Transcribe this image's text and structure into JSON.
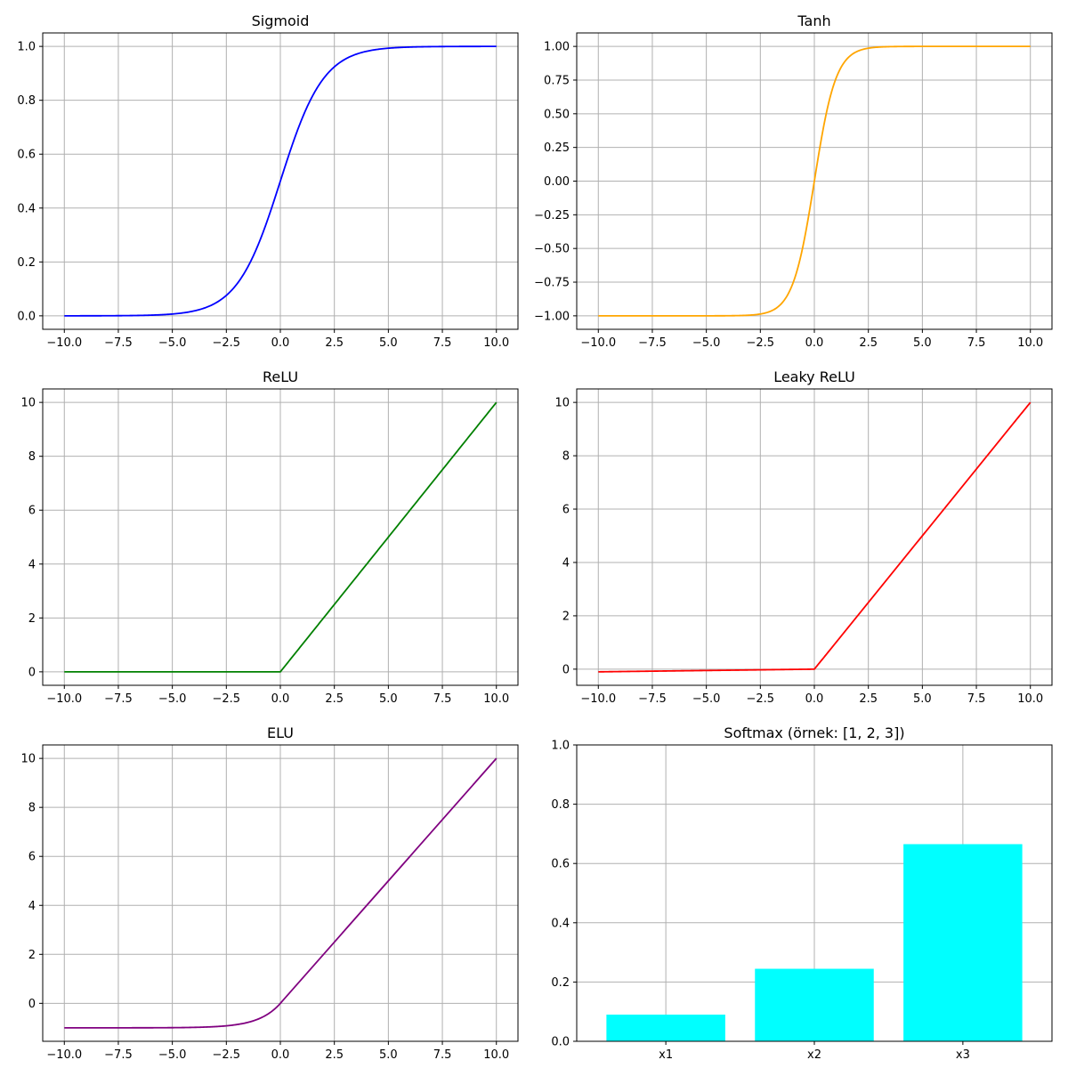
{
  "chart_data": [
    {
      "type": "line",
      "title": "Sigmoid",
      "function": "sigmoid",
      "color": "#0000ff",
      "xlim": [
        -11.0,
        11.0
      ],
      "ylim": [
        -0.05,
        1.05
      ],
      "xticks": [
        -10.0,
        -7.5,
        -5.0,
        -2.5,
        0.0,
        2.5,
        5.0,
        7.5,
        10.0
      ],
      "xtick_labels": [
        "−10.0",
        "−7.5",
        "−5.0",
        "−2.5",
        "0.0",
        "2.5",
        "5.0",
        "7.5",
        "10.0"
      ],
      "yticks": [
        0.0,
        0.2,
        0.4,
        0.6,
        0.8,
        1.0
      ],
      "ytick_labels": [
        "0.0",
        "0.2",
        "0.4",
        "0.6",
        "0.8",
        "1.0"
      ],
      "x_range": [
        -10,
        10
      ],
      "grid": true
    },
    {
      "type": "line",
      "title": "Tanh",
      "function": "tanh",
      "color": "#ffa500",
      "xlim": [
        -11.0,
        11.0
      ],
      "ylim": [
        -1.1,
        1.1
      ],
      "xticks": [
        -10.0,
        -7.5,
        -5.0,
        -2.5,
        0.0,
        2.5,
        5.0,
        7.5,
        10.0
      ],
      "xtick_labels": [
        "−10.0",
        "−7.5",
        "−5.0",
        "−2.5",
        "0.0",
        "2.5",
        "5.0",
        "7.5",
        "10.0"
      ],
      "yticks": [
        -1.0,
        -0.75,
        -0.5,
        -0.25,
        0.0,
        0.25,
        0.5,
        0.75,
        1.0
      ],
      "ytick_labels": [
        "−1.00",
        "−0.75",
        "−0.50",
        "−0.25",
        "0.00",
        "0.25",
        "0.50",
        "0.75",
        "1.00"
      ],
      "x_range": [
        -10,
        10
      ],
      "grid": true
    },
    {
      "type": "line",
      "title": "ReLU",
      "function": "relu",
      "color": "#008000",
      "xlim": [
        -11.0,
        11.0
      ],
      "ylim": [
        -0.5,
        10.5
      ],
      "xticks": [
        -10.0,
        -7.5,
        -5.0,
        -2.5,
        0.0,
        2.5,
        5.0,
        7.5,
        10.0
      ],
      "xtick_labels": [
        "−10.0",
        "−7.5",
        "−5.0",
        "−2.5",
        "0.0",
        "2.5",
        "5.0",
        "7.5",
        "10.0"
      ],
      "yticks": [
        0,
        2,
        4,
        6,
        8,
        10
      ],
      "ytick_labels": [
        "0",
        "2",
        "4",
        "6",
        "8",
        "10"
      ],
      "x_range": [
        -10,
        10
      ],
      "grid": true
    },
    {
      "type": "line",
      "title": "Leaky ReLU",
      "function": "leaky_relu",
      "alpha": 0.01,
      "color": "#ff0000",
      "xlim": [
        -11.0,
        11.0
      ],
      "ylim": [
        -0.605,
        10.505
      ],
      "xticks": [
        -10.0,
        -7.5,
        -5.0,
        -2.5,
        0.0,
        2.5,
        5.0,
        7.5,
        10.0
      ],
      "xtick_labels": [
        "−10.0",
        "−7.5",
        "−5.0",
        "−2.5",
        "0.0",
        "2.5",
        "5.0",
        "7.5",
        "10.0"
      ],
      "yticks": [
        0,
        2,
        4,
        6,
        8,
        10
      ],
      "ytick_labels": [
        "0",
        "2",
        "4",
        "6",
        "8",
        "10"
      ],
      "x_range": [
        -10,
        10
      ],
      "grid": true
    },
    {
      "type": "line",
      "title": "ELU",
      "function": "elu",
      "alpha": 1.0,
      "color": "#800080",
      "xlim": [
        -11.0,
        11.0
      ],
      "ylim": [
        -1.55,
        10.55
      ],
      "xticks": [
        -10.0,
        -7.5,
        -5.0,
        -2.5,
        0.0,
        2.5,
        5.0,
        7.5,
        10.0
      ],
      "xtick_labels": [
        "−10.0",
        "−7.5",
        "−5.0",
        "−2.5",
        "0.0",
        "2.5",
        "5.0",
        "7.5",
        "10.0"
      ],
      "yticks": [
        0,
        2,
        4,
        6,
        8,
        10
      ],
      "ytick_labels": [
        "0",
        "2",
        "4",
        "6",
        "8",
        "10"
      ],
      "x_range": [
        -10,
        10
      ],
      "grid": true
    },
    {
      "type": "bar",
      "title": "Softmax (örnek: [1, 2, 3])",
      "color": "#00ffff",
      "categories": [
        "x1",
        "x2",
        "x3"
      ],
      "values": [
        0.09,
        0.2447,
        0.6652
      ],
      "xlim": [
        -0.6,
        2.6
      ],
      "ylim": [
        0.0,
        1.0
      ],
      "yticks": [
        0.0,
        0.2,
        0.4,
        0.6,
        0.8,
        1.0
      ],
      "ytick_labels": [
        "0.0",
        "0.2",
        "0.4",
        "0.6",
        "0.8",
        "1.0"
      ],
      "grid": true
    }
  ]
}
